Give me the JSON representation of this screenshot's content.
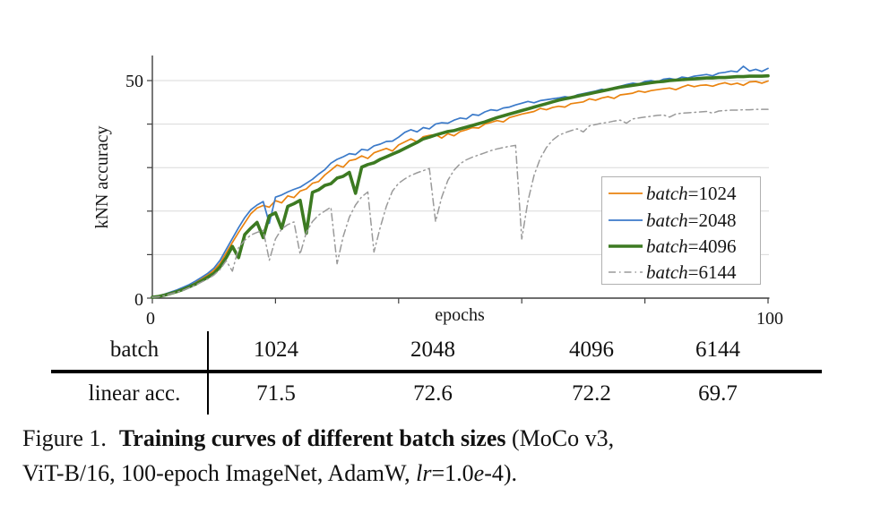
{
  "chart_text": {
    "ylabel": "kNN accuracy",
    "xlabel": "epochs",
    "ytick_top": "50",
    "ytick_bottom": "0",
    "xtick_left": "0",
    "xtick_right": "100"
  },
  "chart_style": {
    "grid_color": "#d9d9d9",
    "axis_color": "#3f3f3f",
    "text_color": "#161616",
    "legend_border_color": "#b0b0b0",
    "legend_bg": "#ffffff"
  },
  "legend": {
    "entries": [
      {
        "var": "batch",
        "value": "=1024"
      },
      {
        "var": "batch",
        "value": "=2048"
      },
      {
        "var": "batch",
        "value": "=4096"
      },
      {
        "var": "batch",
        "value": "=6144"
      }
    ]
  },
  "chart_data": {
    "type": "line",
    "title": "",
    "xlabel": "epochs",
    "ylabel": "kNN accuracy",
    "xlim": [
      0,
      100
    ],
    "ylim": [
      0,
      55
    ],
    "xticks": [
      0,
      20,
      40,
      60,
      80,
      100
    ],
    "xtick_labels_shown": [
      "0",
      "100"
    ],
    "yticks": [
      0,
      10,
      20,
      30,
      40,
      50
    ],
    "ytick_labels_shown": [
      "0",
      "50"
    ],
    "gridlines_y": [
      10,
      20,
      30,
      40,
      50
    ],
    "grid": "horizontal-only",
    "legend_position": "lower right",
    "x_start": 0,
    "x_step": 1,
    "series": [
      {
        "name": "batch=1024",
        "color": "#ea830f",
        "line_width": 1.7,
        "dash": "solid",
        "values": [
          0.2,
          0.4,
          0.8,
          1.2,
          1.7,
          2.3,
          2.9,
          3.6,
          4.4,
          5.3,
          6.4,
          8.0,
          10.4,
          12.8,
          15.1,
          17.3,
          19.4,
          20.7,
          21.3,
          20.9,
          22.4,
          21.9,
          23.5,
          23.1,
          24.6,
          25.1,
          26.4,
          26.8,
          28.3,
          29.4,
          30.6,
          30.1,
          31.6,
          31.9,
          32.7,
          32.1,
          33.4,
          33.9,
          34.4,
          33.8,
          35.2,
          35.9,
          36.6,
          35.9,
          37.1,
          37.4,
          37.6,
          36.8,
          37.8,
          37.3,
          38.3,
          38.7,
          39.2,
          39.1,
          40.0,
          40.4,
          40.8,
          40.5,
          41.5,
          41.9,
          42.3,
          42.6,
          42.9,
          43.6,
          43.3,
          43.8,
          44.1,
          43.9,
          44.7,
          44.9,
          45.1,
          45.8,
          45.5,
          46.0,
          46.3,
          45.9,
          46.7,
          46.9,
          47.1,
          47.6,
          47.3,
          47.7,
          47.9,
          48.1,
          48.3,
          47.9,
          48.5,
          49.0,
          48.6,
          48.9,
          49.0,
          48.7,
          49.2,
          49.5,
          49.1,
          49.4,
          48.9,
          49.7,
          49.8,
          49.4,
          49.9
        ]
      },
      {
        "name": "batch=2048",
        "color": "#3b7ac9",
        "line_width": 1.7,
        "dash": "solid",
        "values": [
          0.2,
          0.5,
          0.9,
          1.4,
          1.9,
          2.5,
          3.1,
          3.9,
          4.8,
          5.7,
          6.9,
          8.7,
          11.2,
          13.7,
          16.2,
          18.5,
          20.3,
          21.4,
          22.2,
          17.2,
          23.2,
          23.7,
          24.4,
          25.0,
          25.5,
          26.4,
          27.3,
          28.5,
          29.5,
          31.0,
          31.9,
          32.5,
          33.2,
          33.0,
          34.2,
          34.0,
          35.0,
          35.4,
          36.0,
          36.1,
          37.0,
          38.1,
          38.7,
          38.2,
          39.2,
          38.9,
          40.0,
          40.3,
          40.2,
          40.9,
          41.4,
          41.2,
          42.2,
          42.0,
          42.8,
          43.3,
          43.1,
          43.7,
          43.9,
          44.4,
          44.8,
          45.2,
          44.9,
          45.4,
          45.6,
          45.8,
          46.0,
          46.3,
          46.1,
          46.7,
          47.0,
          47.3,
          47.6,
          48.0,
          47.7,
          48.4,
          48.7,
          49.1,
          49.4,
          49.2,
          49.8,
          50.0,
          49.7,
          50.3,
          50.5,
          50.2,
          50.8,
          50.6,
          51.0,
          51.2,
          51.4,
          51.1,
          51.7,
          51.9,
          52.2,
          52.0,
          53.3,
          52.2,
          52.6,
          52.1,
          52.8
        ]
      },
      {
        "name": "batch=4096",
        "color": "#3c7a21",
        "line_width": 3.6,
        "dash": "solid",
        "values": [
          0.2,
          0.4,
          0.7,
          1.1,
          1.5,
          2.0,
          2.6,
          3.2,
          4.0,
          4.8,
          5.7,
          7.2,
          9.3,
          11.9,
          9.3,
          14.6,
          16.1,
          17.4,
          13.9,
          18.9,
          19.6,
          16.0,
          21.1,
          21.7,
          22.5,
          14.9,
          24.3,
          24.9,
          25.9,
          26.3,
          27.6,
          28.0,
          28.9,
          24.1,
          30.1,
          30.7,
          31.1,
          31.9,
          32.5,
          33.1,
          33.7,
          34.4,
          35.1,
          35.8,
          36.6,
          37.0,
          37.5,
          37.9,
          38.3,
          38.5,
          38.9,
          39.3,
          39.7,
          40.1,
          40.5,
          41.0,
          41.5,
          41.9,
          42.3,
          42.7,
          43.1,
          43.5,
          43.9,
          44.3,
          44.7,
          45.1,
          45.5,
          45.8,
          46.1,
          46.4,
          46.7,
          47.0,
          47.3,
          47.6,
          47.9,
          48.2,
          48.5,
          48.7,
          48.9,
          49.1,
          49.3,
          49.5,
          49.7,
          49.8,
          50.0,
          50.1,
          50.2,
          50.3,
          50.4,
          50.5,
          50.6,
          50.6,
          50.7,
          50.7,
          50.8,
          50.9,
          50.9,
          51.0,
          51.0,
          51.0,
          51.1
        ]
      },
      {
        "name": "batch=6144",
        "color": "#9a9a9a",
        "line_width": 1.5,
        "dash": "dashdot",
        "values": [
          0.2,
          0.3,
          0.6,
          1.0,
          1.4,
          1.8,
          2.4,
          3.0,
          3.7,
          4.4,
          5.3,
          6.6,
          8.6,
          6.2,
          11.6,
          13.3,
          14.5,
          15.1,
          15.6,
          8.7,
          13.6,
          15.9,
          16.9,
          17.5,
          10.1,
          15.1,
          17.6,
          19.1,
          20.0,
          20.9,
          7.9,
          14.2,
          18.6,
          21.4,
          23.3,
          24.4,
          10.6,
          16.2,
          21.1,
          24.6,
          26.4,
          27.4,
          28.2,
          28.8,
          29.3,
          29.8,
          17.6,
          23.2,
          27.1,
          29.4,
          30.9,
          31.8,
          32.4,
          32.9,
          33.4,
          33.9,
          34.3,
          34.6,
          34.9,
          35.1,
          13.6,
          22.3,
          28.2,
          32.1,
          34.6,
          36.3,
          37.4,
          38.0,
          38.5,
          38.9,
          38.2,
          39.6,
          39.9,
          40.2,
          40.4,
          40.7,
          40.9,
          40.2,
          41.2,
          41.4,
          41.6,
          41.8,
          42.0,
          42.1,
          41.6,
          42.3,
          42.5,
          42.6,
          42.7,
          42.8,
          42.9,
          42.5,
          43.0,
          43.1,
          43.2,
          43.2,
          43.3,
          43.3,
          43.4,
          43.4,
          43.4
        ]
      }
    ]
  },
  "table": {
    "rows": [
      {
        "header": "batch",
        "values": [
          "1024",
          "2048",
          "4096",
          "6144"
        ]
      },
      {
        "header": "linear acc.",
        "values": [
          "71.5",
          "72.6",
          "72.2",
          "69.7"
        ]
      }
    ]
  },
  "caption": {
    "figure_label": "Figure 1.",
    "title_bold": "Training curves of different batch sizes",
    "after_title": "(MoCo v3,",
    "line2_start": "ViT-B/16, 100-epoch ImageNet, AdamW, ",
    "lr_var": "lr",
    "lr_mid": "=1.0",
    "e_var": "e",
    "line2_end": "-4)."
  }
}
